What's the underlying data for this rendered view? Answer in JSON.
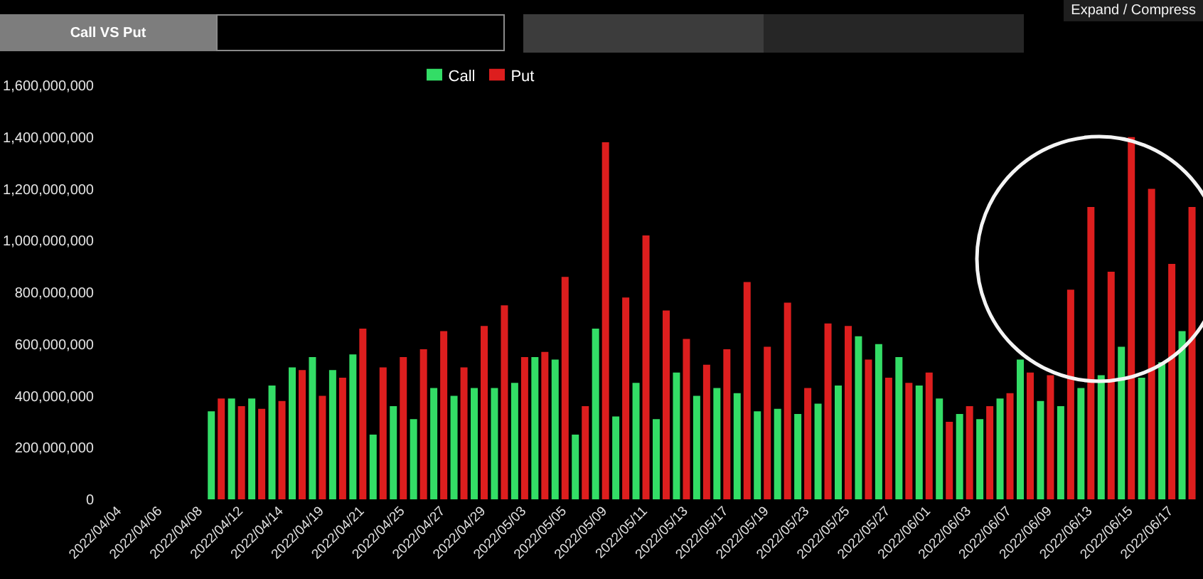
{
  "chart_data": {
    "type": "bar",
    "title": "Call VS Put",
    "annotations": [
      "Expand / Compress"
    ],
    "categories": [
      "2022/04/04",
      null,
      "2022/04/06",
      null,
      "2022/04/08",
      null,
      "2022/04/12",
      null,
      "2022/04/14",
      null,
      "2022/04/19",
      null,
      "2022/04/21",
      null,
      "2022/04/25",
      null,
      "2022/04/27",
      null,
      "2022/04/29",
      null,
      "2022/05/03",
      null,
      "2022/05/05",
      null,
      "2022/05/09",
      null,
      "2022/05/11",
      null,
      "2022/05/13",
      null,
      "2022/05/17",
      null,
      "2022/05/19",
      null,
      "2022/05/23",
      null,
      "2022/05/25",
      null,
      "2022/05/27",
      null,
      "2022/06/01",
      null,
      "2022/06/03",
      null,
      "2022/06/07",
      null,
      "2022/06/09",
      null,
      "2022/06/13",
      null,
      "2022/06/15",
      null,
      "2022/06/17",
      null
    ],
    "series": [
      {
        "name": "Call",
        "color": "#33dd66",
        "values": [
          null,
          null,
          null,
          null,
          null,
          340000000,
          390000000,
          390000000,
          440000000,
          510000000,
          550000000,
          500000000,
          560000000,
          250000000,
          360000000,
          310000000,
          430000000,
          400000000,
          430000000,
          430000000,
          450000000,
          550000000,
          540000000,
          250000000,
          660000000,
          320000000,
          450000000,
          310000000,
          490000000,
          400000000,
          430000000,
          410000000,
          340000000,
          350000000,
          330000000,
          370000000,
          440000000,
          630000000,
          600000000,
          550000000,
          440000000,
          390000000,
          330000000,
          310000000,
          390000000,
          540000000,
          380000000,
          360000000,
          430000000,
          480000000,
          590000000,
          470000000,
          530000000,
          650000000
        ]
      },
      {
        "name": "Put",
        "color": "#dd1e1e",
        "values": [
          null,
          null,
          null,
          null,
          null,
          390000000,
          360000000,
          350000000,
          380000000,
          500000000,
          400000000,
          470000000,
          660000000,
          510000000,
          550000000,
          580000000,
          650000000,
          510000000,
          670000000,
          750000000,
          550000000,
          570000000,
          860000000,
          360000000,
          1380000000,
          780000000,
          1020000000,
          730000000,
          620000000,
          520000000,
          580000000,
          840000000,
          590000000,
          760000000,
          430000000,
          680000000,
          670000000,
          540000000,
          470000000,
          450000000,
          490000000,
          300000000,
          360000000,
          360000000,
          410000000,
          490000000,
          480000000,
          810000000,
          1130000000,
          880000000,
          1400000000,
          1200000000,
          910000000,
          1130000000
        ]
      }
    ],
    "ylim": [
      0,
      1600000000
    ],
    "yticks": [
      0,
      {
        "value": 200000000,
        "label": "200,000,000"
      },
      {
        "value": 400000000,
        "label": "400,000,000"
      },
      {
        "value": 600000000,
        "label": "600,000,000"
      },
      {
        "value": 800000000,
        "label": "800,000,000"
      },
      {
        "value": 1000000000,
        "label": "1,000,000,000"
      },
      {
        "value": 1200000000,
        "label": "1,200,000,000"
      },
      {
        "value": 1400000000,
        "label": "1,400,000,000"
      },
      {
        "value": 1600000000,
        "label": "1,600,000,000"
      }
    ],
    "legend": "top"
  }
}
